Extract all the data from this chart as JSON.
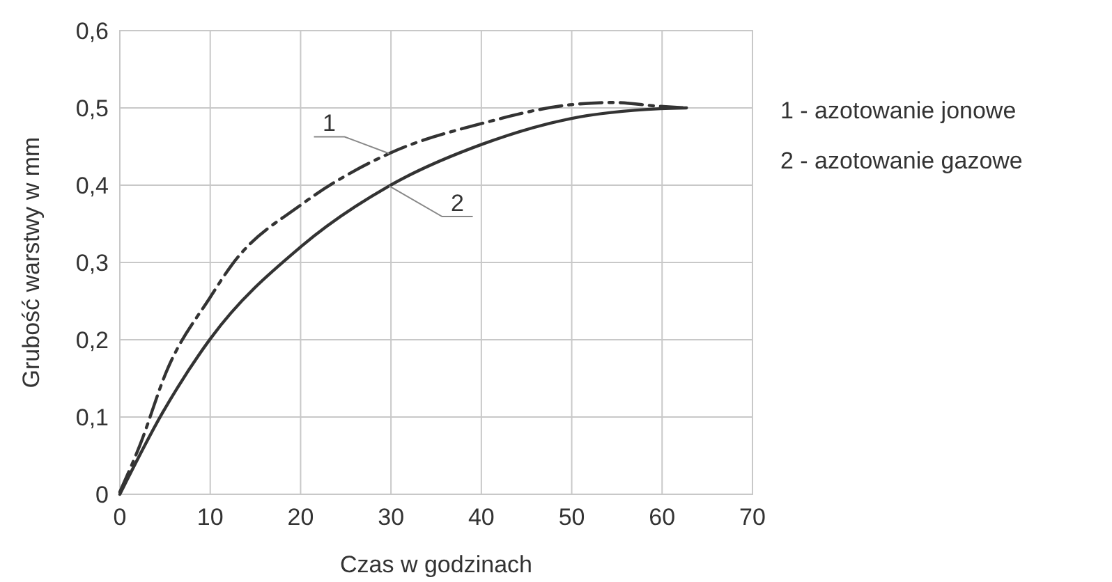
{
  "chart_data": {
    "type": "line",
    "xlabel": "Czas w godzinach",
    "ylabel": "Grubość warstwy w mm",
    "xlim": [
      0,
      70
    ],
    "ylim": [
      0,
      0.6
    ],
    "xticks": [
      0,
      10,
      20,
      30,
      40,
      50,
      60,
      70
    ],
    "yticks": [
      {
        "value": 0,
        "label": "0"
      },
      {
        "value": 0.1,
        "label": "0,1"
      },
      {
        "value": 0.2,
        "label": "0,2"
      },
      {
        "value": 0.3,
        "label": "0,3"
      },
      {
        "value": 0.4,
        "label": "0,4"
      },
      {
        "value": 0.5,
        "label": "0,5"
      },
      {
        "value": 0.6,
        "label": "0,6"
      }
    ],
    "grid": true,
    "marker": "none",
    "series": [
      {
        "name": "1",
        "color": "#333333",
        "line_style": "dashed",
        "x": [
          0,
          2.2,
          5.2,
          10,
          12.4,
          20.1,
          29.8,
          40.1,
          49.8,
          54.5,
          59.8,
          62.7
        ],
        "values": [
          0.003,
          0.063,
          0.16,
          0.255,
          0.297,
          0.375,
          0.441,
          0.48,
          0.504,
          0.507,
          0.502,
          0.5
        ]
      },
      {
        "name": "2",
        "color": "#333333",
        "line_style": "solid",
        "x": [
          0,
          4.7,
          10,
          20.1,
          29.8,
          40.1,
          49.8,
          59.8,
          62.7
        ],
        "values": [
          0,
          0.105,
          0.201,
          0.321,
          0.399,
          0.453,
          0.486,
          0.499,
          0.5
        ]
      }
    ],
    "annotations": [
      "1 - azotowanie jonowe",
      "2 - azotowanie gazowe"
    ]
  }
}
